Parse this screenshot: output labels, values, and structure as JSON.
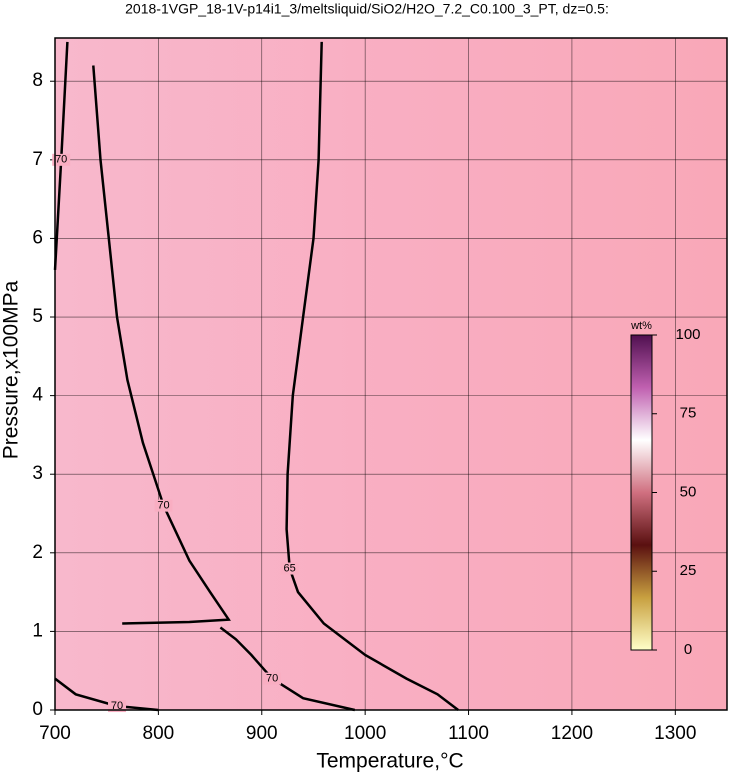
{
  "chart_data": {
    "type": "contour",
    "title": "2018-1VGP_18-1V-p14i1_3/meltsliquid/SiO2/H2O_7.2_C0.100_3_PT, dz=0.5:",
    "x_label": "Temperature,°C",
    "y_label": "Pressure,x100MPa",
    "xlim": [
      700,
      1350
    ],
    "xticks": [
      700,
      800,
      900,
      1000,
      1100,
      1200,
      1300
    ],
    "ylim": [
      0,
      8.55
    ],
    "yticks": [
      0,
      1,
      2,
      3,
      4,
      5,
      6,
      7,
      8
    ],
    "grid": true,
    "line_color": "#000000",
    "contours": [
      {
        "level": 70,
        "x": [
          712,
          706,
          700
        ],
        "y": [
          8.5,
          7.0,
          5.6
        ]
      },
      {
        "level": 70,
        "x": [
          737,
          744,
          752,
          760,
          770,
          785,
          805,
          830,
          850,
          868,
          830,
          765
        ],
        "y": [
          8.2,
          7.0,
          6.0,
          5.0,
          4.2,
          3.4,
          2.6,
          1.9,
          1.5,
          1.15,
          1.12,
          1.1
        ]
      },
      {
        "level": 65,
        "x": [
          958,
          955,
          950,
          940,
          930,
          925,
          924,
          927,
          935,
          960,
          1000,
          1040,
          1070,
          1090
        ],
        "y": [
          8.5,
          7.0,
          6.0,
          5.0,
          4.0,
          3.0,
          2.3,
          1.8,
          1.5,
          1.1,
          0.7,
          0.4,
          0.2,
          0
        ]
      },
      {
        "level": 70,
        "x": [
          860,
          875,
          890,
          910,
          940,
          990
        ],
        "y": [
          1.05,
          0.9,
          0.7,
          0.4,
          0.15,
          0
        ]
      },
      {
        "level": 70,
        "x": [
          700,
          720,
          760,
          800
        ],
        "y": [
          0.4,
          0.2,
          0.05,
          0
        ]
      }
    ],
    "colorbar": {
      "label": "wt%",
      "lim": [
        0,
        100
      ],
      "ticks": [
        0,
        25,
        50,
        75,
        100
      ],
      "colors": [
        "#ffffc8",
        "#c8a040",
        "#5a1010",
        "#d07080",
        "#ffffff",
        "#c060b0",
        "#501050"
      ]
    }
  }
}
